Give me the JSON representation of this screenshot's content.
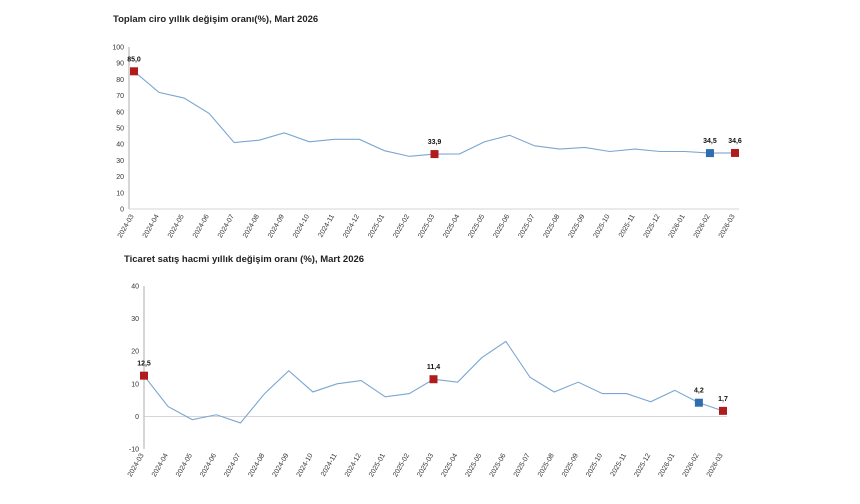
{
  "colors": {
    "line": "#7aa6d1",
    "marker_red": "#b01c1c",
    "marker_blue": "#2e6db0",
    "axis": "#9a9a9a"
  },
  "chart_data": [
    {
      "type": "line",
      "title": "Toplam ciro yıllık değişim oranı(%), Mart 2026",
      "categories": [
        "2024-03",
        "2024-04",
        "2024-05",
        "2024-06",
        "2024-07",
        "2024-08",
        "2024-09",
        "2024-10",
        "2024-11",
        "2024-12",
        "2025-01",
        "2025-02",
        "2025-03",
        "2025-04",
        "2025-05",
        "2025-06",
        "2025-07",
        "2025-08",
        "2025-09",
        "2025-10",
        "2025-11",
        "2025-12",
        "2026-01",
        "2026-02",
        "2026-03"
      ],
      "values": [
        85.0,
        72,
        68.5,
        59,
        41,
        42.5,
        47,
        41.5,
        43,
        43,
        36,
        32.5,
        33.9,
        34,
        41.5,
        45.5,
        39,
        37,
        38,
        35.5,
        37,
        35.5,
        35.5,
        34.5,
        34.6
      ],
      "ylim": [
        0,
        100
      ],
      "yticks": [
        0,
        10,
        20,
        30,
        40,
        50,
        60,
        70,
        80,
        90,
        100
      ],
      "highlights": [
        {
          "index": 0,
          "label": "85,0",
          "color": "red"
        },
        {
          "index": 12,
          "label": "33,9",
          "color": "red"
        },
        {
          "index": 23,
          "label": "34,5",
          "color": "blue"
        },
        {
          "index": 24,
          "label": "34,6",
          "color": "red"
        }
      ]
    },
    {
      "type": "line",
      "title": "Ticaret satış hacmi yıllık değişim oranı (%), Mart 2026",
      "categories": [
        "2024-03",
        "2024-04",
        "2024-05",
        "2024-06",
        "2024-07",
        "2024-08",
        "2024-09",
        "2024-10",
        "2024-11",
        "2024-12",
        "2025-01",
        "2025-02",
        "2025-03",
        "2025-04",
        "2025-05",
        "2025-06",
        "2025-07",
        "2025-08",
        "2025-09",
        "2025-10",
        "2025-11",
        "2025-12",
        "2026-01",
        "2026-02",
        "2026-03"
      ],
      "values": [
        12.5,
        3,
        -1,
        0.5,
        -2,
        7,
        14,
        7.5,
        10,
        11,
        6,
        7,
        11.4,
        10.5,
        18,
        23,
        12,
        7.5,
        10.5,
        7,
        7,
        4.5,
        8,
        4.2,
        1.7
      ],
      "ylim": [
        -10,
        40
      ],
      "yticks": [
        -10,
        0,
        10,
        20,
        30,
        40
      ],
      "highlights": [
        {
          "index": 0,
          "label": "12,5",
          "color": "red"
        },
        {
          "index": 12,
          "label": "11,4",
          "color": "red"
        },
        {
          "index": 23,
          "label": "4,2",
          "color": "blue"
        },
        {
          "index": 24,
          "label": "1,7",
          "color": "red"
        }
      ]
    }
  ]
}
